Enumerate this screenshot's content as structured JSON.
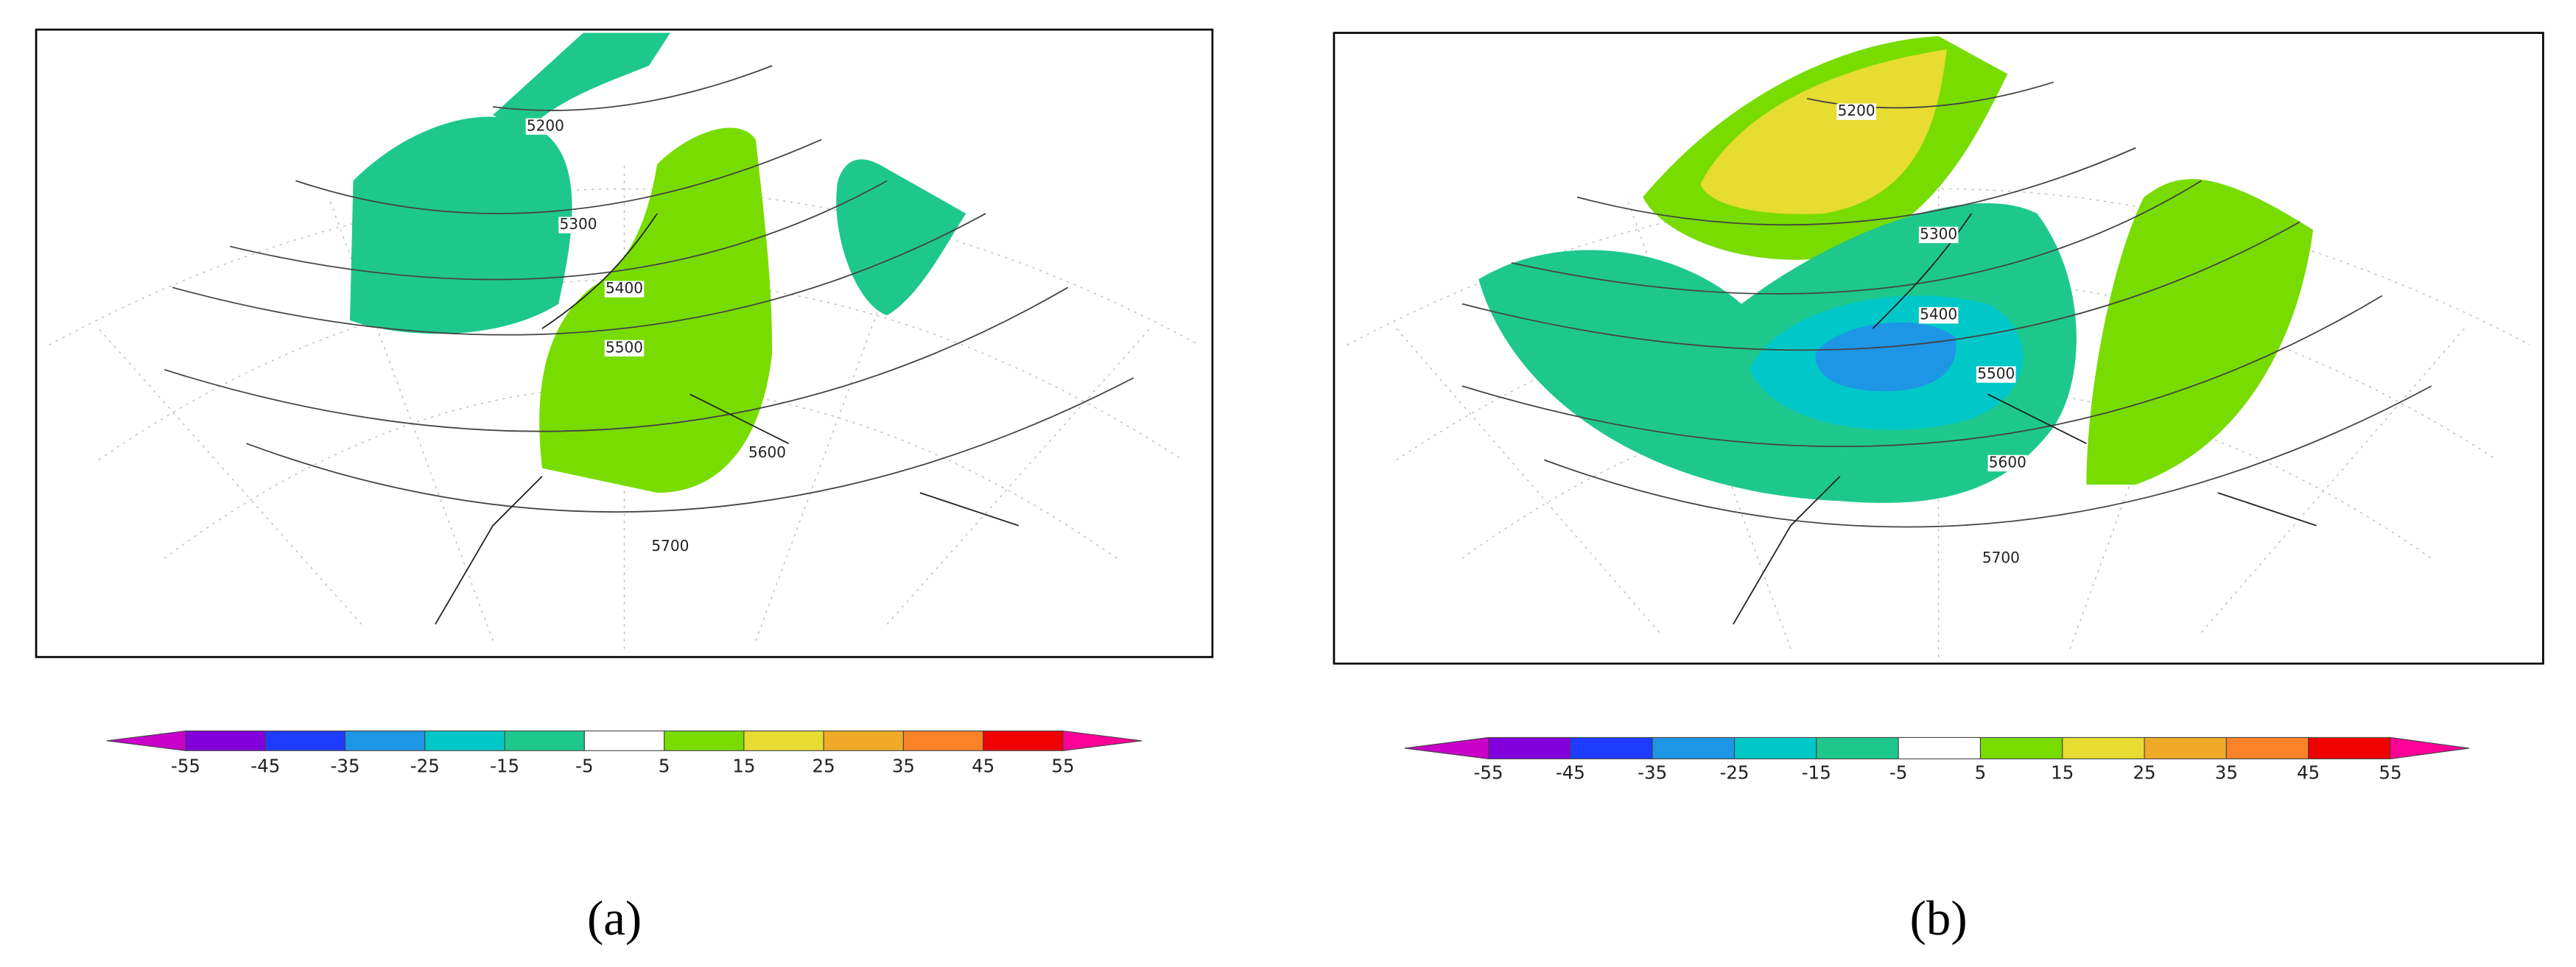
{
  "panels": [
    {
      "caption": "(a)",
      "contour_labels": [
        5200,
        5300,
        5400,
        5500,
        5600,
        5700
      ],
      "colorbar": {
        "levels": [
          -55,
          -45,
          -35,
          -25,
          -15,
          -5,
          5,
          15,
          25,
          35,
          45,
          55
        ],
        "colors": [
          "#c800c8",
          "#8200dc",
          "#1e3cff",
          "#1e96e6",
          "#00c8c8",
          "#1ec88c",
          "#ffffff",
          "#78dc00",
          "#e6dc32",
          "#f0aa28",
          "#fa8228",
          "#f00000",
          "#ff0096"
        ]
      }
    },
    {
      "caption": "(b)",
      "contour_labels": [
        5200,
        5300,
        5400,
        5500,
        5600,
        5700
      ],
      "colorbar": {
        "levels": [
          -55,
          -45,
          -35,
          -25,
          -15,
          -5,
          5,
          15,
          25,
          35,
          45,
          55
        ],
        "colors": [
          "#c800c8",
          "#8200dc",
          "#1e3cff",
          "#1e96e6",
          "#00c8c8",
          "#1ec88c",
          "#ffffff",
          "#78dc00",
          "#e6dc32",
          "#f0aa28",
          "#fa8228",
          "#f00000",
          "#ff0096"
        ]
      }
    }
  ]
}
